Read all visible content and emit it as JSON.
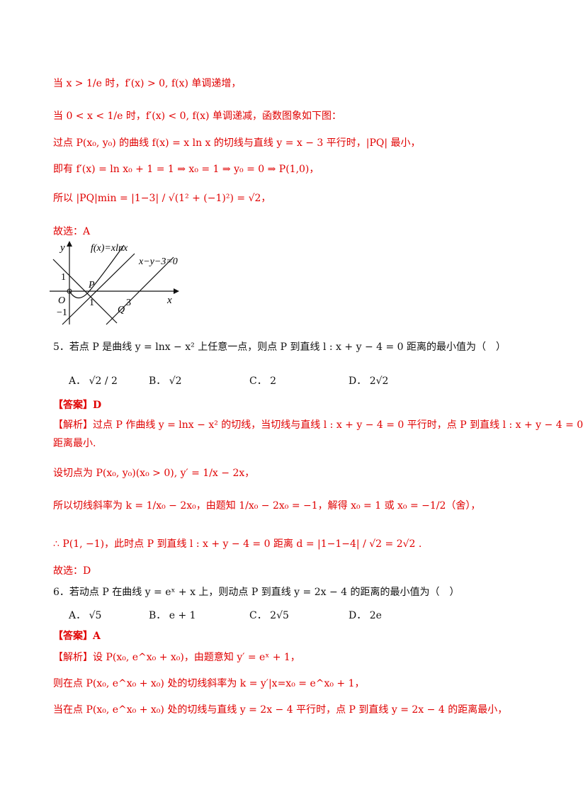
{
  "lines": {
    "l1": "当 x > 1/e 时，f′(x) > 0, f(x) 单调递增，",
    "l2": "当 0 < x < 1/e 时，f′(x) < 0, f(x) 单调递减，函数图象如下图：",
    "l3": "过点 P(x₀, y₀) 的曲线 f(x) = x ln x 的切线与直线 y = x − 3 平行时，|PQ| 最小，",
    "l4": "即有 f′(x) = ln x₀ + 1 = 1 ⇒ x₀ = 1 ⇒ y₀ = 0 ⇒ P(1,0)，",
    "l5": "所以 |PQ|min = |1−3| / √(1² + (−1)²) = √2，",
    "l6": "故选：A"
  },
  "graph": {
    "y_axis": "y",
    "x_axis": "x",
    "curve_label": "f(x)=xlnx",
    "line_label": "x−y−3=0",
    "origin": "O",
    "tick_1y": "1",
    "tick_neg1": "−1",
    "tick_1x": "1",
    "tick_3x": "3",
    "point_p": "P",
    "point_q": "Q"
  },
  "q5": {
    "stem": "5．若点 P 是曲线 y = lnx − x² 上任意一点，则点 P 到直线 l : x + y − 4 = 0 距离的最小值为（　）",
    "options": [
      {
        "letter": "A．",
        "value": "√2 / 2"
      },
      {
        "letter": "B．",
        "value": "√2"
      },
      {
        "letter": "C．",
        "value": "2"
      },
      {
        "letter": "D．",
        "value": "2√2"
      }
    ],
    "answer": "【答案】D",
    "analysis": [
      "【解析】过点 P 作曲线 y = lnx − x² 的切线，当切线与直线 l : x + y − 4 = 0 平行时，点 P 到直线 l : x + y − 4 = 0",
      "距离最小.",
      "设切点为 P(x₀, y₀)(x₀ > 0), y′ = 1/x − 2x，",
      "所以切线斜率为 k = 1/x₀ − 2x₀，由题知 1/x₀ − 2x₀ = −1，解得 x₀ = 1 或 x₀ = −1/2（舍），",
      "∴ P(1, −1)，此时点 P 到直线 l : x + y − 4 = 0 距离 d = |1−1−4| / √2 = 2√2 .",
      "故选：D"
    ]
  },
  "q6": {
    "stem": "6．若动点 P 在曲线 y = eˣ + x 上，则动点 P 到直线 y = 2x − 4 的距离的最小值为（　）",
    "options": [
      {
        "letter": "A．",
        "value": "√5"
      },
      {
        "letter": "B．",
        "value": "e + 1"
      },
      {
        "letter": "C．",
        "value": "2√5"
      },
      {
        "letter": "D．",
        "value": "2e"
      }
    ],
    "answer": "【答案】A",
    "analysis": [
      "【解析】设 P(x₀, e^x₀ + x₀)，由题意知 y′ = eˣ + 1，",
      "则在点 P(x₀, e^x₀ + x₀) 处的切线斜率为 k = y′|x=x₀ = e^x₀ + 1，",
      "当在点 P(x₀, e^x₀ + x₀) 处的切线与直线 y = 2x − 4 平行时，点 P 到直线 y = 2x − 4 的距离最小，"
    ]
  }
}
